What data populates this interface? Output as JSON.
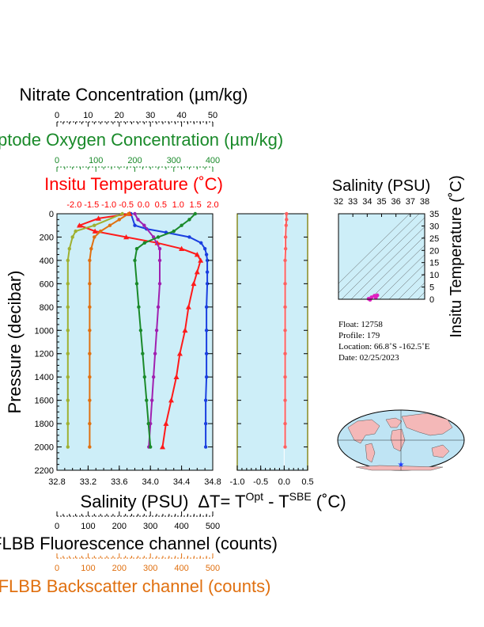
{
  "chart_data": [
    {
      "type": "line",
      "title": "",
      "ylabel": "Pressure (decibar)",
      "ylim": [
        0,
        2200
      ],
      "y_inverted": true,
      "y_ticks": [
        "0",
        "200",
        "400",
        "600",
        "800",
        "1000",
        "1200",
        "1400",
        "1600",
        "1800",
        "2000",
        "2200"
      ],
      "axes": {
        "nitrate": {
          "label": "Nitrate Concentration (µm/kg)",
          "range": [
            0,
            50
          ],
          "ticks": [
            "0",
            "10",
            "20",
            "30",
            "40",
            "50"
          ],
          "color": "#000000"
        },
        "oxygen": {
          "label": "Optode Oxygen Concentration (µm/kg)",
          "range": [
            0,
            400
          ],
          "ticks": [
            "0",
            "100",
            "200",
            "300",
            "400"
          ],
          "color": "#1a8a2a"
        },
        "temperature": {
          "label": "Insitu Temperature (˚C)",
          "range": [
            -2.5,
            2.0
          ],
          "ticks": [
            "-2.0",
            "-1.5",
            "-1.0",
            "-0.5",
            "0.0",
            "0.5",
            "1.0",
            "1.5",
            "2.0"
          ],
          "color": "#ff0000"
        },
        "salinity": {
          "label": "Salinity (PSU)",
          "range": [
            32.8,
            34.8
          ],
          "ticks": [
            "32.8",
            "33.2",
            "33.6",
            "34.0",
            "34.4",
            "34.8"
          ],
          "color": "#000000"
        },
        "fluorescence": {
          "label": "FLBB Fluorescence channel (counts)",
          "range": [
            0,
            500
          ],
          "ticks": [
            "0",
            "100",
            "200",
            "300",
            "400",
            "500"
          ],
          "color": "#000000"
        },
        "backscatter": {
          "label": "FLBB Backscatter channel (counts)",
          "range": [
            0,
            500
          ],
          "ticks": [
            "0",
            "100",
            "200",
            "300",
            "400",
            "500"
          ],
          "color": "#e07010"
        }
      },
      "series": [
        {
          "axis": "salinity",
          "color": "#1a3fe0",
          "marker": "circle",
          "points": [
            [
              33.75,
              0
            ],
            [
              33.8,
              100
            ],
            [
              33.95,
              130
            ],
            [
              34.2,
              160
            ],
            [
              34.5,
              200
            ],
            [
              34.65,
              250
            ],
            [
              34.7,
              300
            ],
            [
              34.72,
              350
            ],
            [
              34.73,
              400
            ],
            [
              34.73,
              500
            ],
            [
              34.73,
              600
            ],
            [
              34.72,
              800
            ],
            [
              34.72,
              1000
            ],
            [
              34.72,
              1200
            ],
            [
              34.72,
              1400
            ],
            [
              34.71,
              1600
            ],
            [
              34.71,
              1800
            ],
            [
              34.71,
              2000
            ]
          ]
        },
        {
          "axis": "temperature",
          "color": "#ff1a1a",
          "marker": "triangle",
          "points": [
            [
              -0.4,
              0
            ],
            [
              -1.3,
              40
            ],
            [
              -1.85,
              100
            ],
            [
              -1.4,
              150
            ],
            [
              -0.5,
              200
            ],
            [
              0.4,
              250
            ],
            [
              1.1,
              300
            ],
            [
              1.55,
              350
            ],
            [
              1.65,
              400
            ],
            [
              1.55,
              500
            ],
            [
              1.45,
              600
            ],
            [
              1.3,
              800
            ],
            [
              1.2,
              1000
            ],
            [
              1.05,
              1200
            ],
            [
              0.95,
              1400
            ],
            [
              0.8,
              1600
            ],
            [
              0.65,
              1800
            ],
            [
              0.55,
              2000
            ]
          ]
        },
        {
          "axis": "nitrate",
          "color": "#a020b0",
          "marker": "circle",
          "points": [
            [
              25,
              0
            ],
            [
              26,
              50
            ],
            [
              28,
              100
            ],
            [
              31,
              200
            ],
            [
              33,
              300
            ],
            [
              33,
              400
            ],
            [
              33,
              600
            ],
            [
              32.5,
              800
            ],
            [
              32,
              1000
            ],
            [
              31.5,
              1200
            ],
            [
              31,
              1400
            ],
            [
              30.5,
              1600
            ],
            [
              30,
              1800
            ],
            [
              29.5,
              2000
            ]
          ]
        },
        {
          "axis": "oxygen",
          "color": "#1a8a2a",
          "marker": "circle",
          "points": [
            [
              355,
              0
            ],
            [
              340,
              50
            ],
            [
              320,
              100
            ],
            [
              300,
              150
            ],
            [
              260,
              200
            ],
            [
              225,
              250
            ],
            [
              205,
              300
            ],
            [
              200,
              400
            ],
            [
              205,
              600
            ],
            [
              210,
              800
            ],
            [
              215,
              1000
            ],
            [
              220,
              1200
            ],
            [
              225,
              1400
            ],
            [
              230,
              1600
            ],
            [
              235,
              1800
            ],
            [
              240,
              2000
            ]
          ]
        },
        {
          "axis": "fluorescence",
          "color": "#9fb030",
          "marker": "circle",
          "points": [
            [
              210,
              0
            ],
            [
              120,
              100
            ],
            [
              60,
              150
            ],
            [
              50,
              200
            ],
            [
              40,
              300
            ],
            [
              35,
              400
            ],
            [
              35,
              600
            ],
            [
              35,
              800
            ],
            [
              35,
              1000
            ],
            [
              35,
              1200
            ],
            [
              35,
              1400
            ],
            [
              35,
              1600
            ],
            [
              35,
              1800
            ],
            [
              35,
              2000
            ]
          ]
        },
        {
          "axis": "backscatter",
          "color": "#e07010",
          "marker": "circle",
          "points": [
            [
              230,
              0
            ],
            [
              200,
              50
            ],
            [
              170,
              100
            ],
            [
              140,
              150
            ],
            [
              120,
              200
            ],
            [
              110,
              300
            ],
            [
              105,
              400
            ],
            [
              105,
              600
            ],
            [
              105,
              800
            ],
            [
              105,
              1000
            ],
            [
              105,
              1200
            ],
            [
              105,
              1400
            ],
            [
              105,
              1600
            ],
            [
              105,
              1800
            ],
            [
              105,
              2000
            ]
          ]
        }
      ]
    },
    {
      "type": "line",
      "xlabel": "ΔT= T^Opt - T^SBE (˚C)",
      "xlabel_parts": [
        "ΔT= T",
        "Opt",
        " - T",
        "SBE",
        " (˚C)"
      ],
      "xlim": [
        -1.0,
        0.5
      ],
      "ylim": [
        0,
        2200
      ],
      "y_inverted": true,
      "x_ticks": [
        "-1.0",
        "-0.5",
        "0.0",
        "0.5"
      ],
      "series": [
        {
          "color": "#ff6060",
          "marker": "circle",
          "points": [
            [
              0.05,
              0
            ],
            [
              0.05,
              50
            ],
            [
              0.04,
              100
            ],
            [
              0.03,
              200
            ],
            [
              0.03,
              300
            ],
            [
              0.02,
              400
            ],
            [
              0.02,
              600
            ],
            [
              0.02,
              800
            ],
            [
              0.02,
              1000
            ],
            [
              0.02,
              1200
            ],
            [
              0.02,
              1400
            ],
            [
              0.02,
              1600
            ],
            [
              0.02,
              1800
            ],
            [
              0.02,
              2000
            ]
          ]
        }
      ]
    },
    {
      "type": "scatter",
      "xlabel": "Salinity (PSU)",
      "ylabel": "Insitu Temperature (˚C)",
      "xlim": [
        32,
        38
      ],
      "ylim": [
        0,
        35
      ],
      "x_ticks": [
        "32",
        "33",
        "34",
        "35",
        "36",
        "37",
        "38"
      ],
      "y_ticks": [
        "0",
        "5",
        "10",
        "15",
        "20",
        "25",
        "30",
        "35"
      ],
      "series": [
        {
          "color": "#e020c0",
          "points": [
            [
              34.1,
              0.2
            ],
            [
              34.3,
              0.8
            ],
            [
              34.5,
              1.4
            ],
            [
              34.7,
              1.6
            ],
            [
              34.6,
              0.6
            ],
            [
              34.2,
              -0.2
            ]
          ]
        }
      ]
    }
  ],
  "float_info": {
    "float_line": "Float:  12758",
    "profile_line": "Profile:  179",
    "location_line": "Location:  66.8˚S  -162.5˚E",
    "date_line": "Date:  02/25/2023"
  },
  "map": {
    "marker_color": "#2040ff",
    "ocean_color": "#bfe4f4",
    "land_color": "#f4b8b8"
  }
}
